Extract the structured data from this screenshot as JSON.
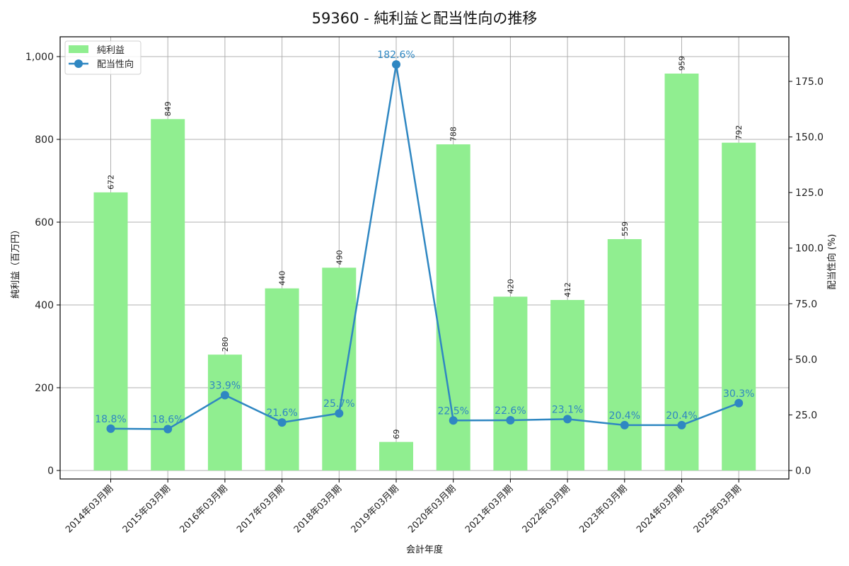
{
  "chart_data": {
    "type": "bar+line",
    "title": "59360 - 純利益と配当性向の推移",
    "xlabel": "会計年度",
    "ylabel": "純利益（百万円）",
    "y2label": "配当性向 (%)",
    "categories": [
      "2014年03月期",
      "2015年03月期",
      "2016年03月期",
      "2017年03月期",
      "2018年03月期",
      "2019年03月期",
      "2020年03月期",
      "2021年03月期",
      "2022年03月期",
      "2023年03月期",
      "2024年03月期",
      "2025年03月期"
    ],
    "series": [
      {
        "name": "純利益",
        "type": "bar",
        "axis": "left",
        "color": "#90ee90",
        "values": [
          672,
          849,
          280,
          440,
          490,
          69,
          788,
          420,
          412,
          559,
          959,
          792
        ]
      },
      {
        "name": "配当性向",
        "type": "line",
        "axis": "right",
        "color": "#2f87c2",
        "values": [
          18.8,
          18.6,
          33.9,
          21.6,
          25.7,
          182.6,
          22.5,
          22.6,
          23.1,
          20.4,
          20.4,
          30.3
        ],
        "labels": [
          "18.8%",
          "18.6%",
          "33.9%",
          "21.6%",
          "25.7%",
          "182.6%",
          "22.5%",
          "22.6%",
          "23.1%",
          "20.4%",
          "20.4%",
          "30.3%"
        ]
      }
    ],
    "ylim": [
      0,
      1050
    ],
    "y2lim": [
      0,
      195
    ],
    "yticks": [
      "0",
      "200",
      "400",
      "600",
      "800",
      "1,000"
    ],
    "yticks_values": [
      0,
      200,
      400,
      600,
      800,
      1000
    ],
    "y2ticks": [
      "0.0",
      "25.0",
      "50.0",
      "75.0",
      "100.0",
      "125.0",
      "150.0",
      "175.0"
    ],
    "y2ticks_values": [
      0,
      25,
      50,
      75,
      100,
      125,
      150,
      175
    ],
    "grid": true,
    "legend_position": "upper left",
    "legend": [
      "純利益",
      "配当性向"
    ]
  }
}
